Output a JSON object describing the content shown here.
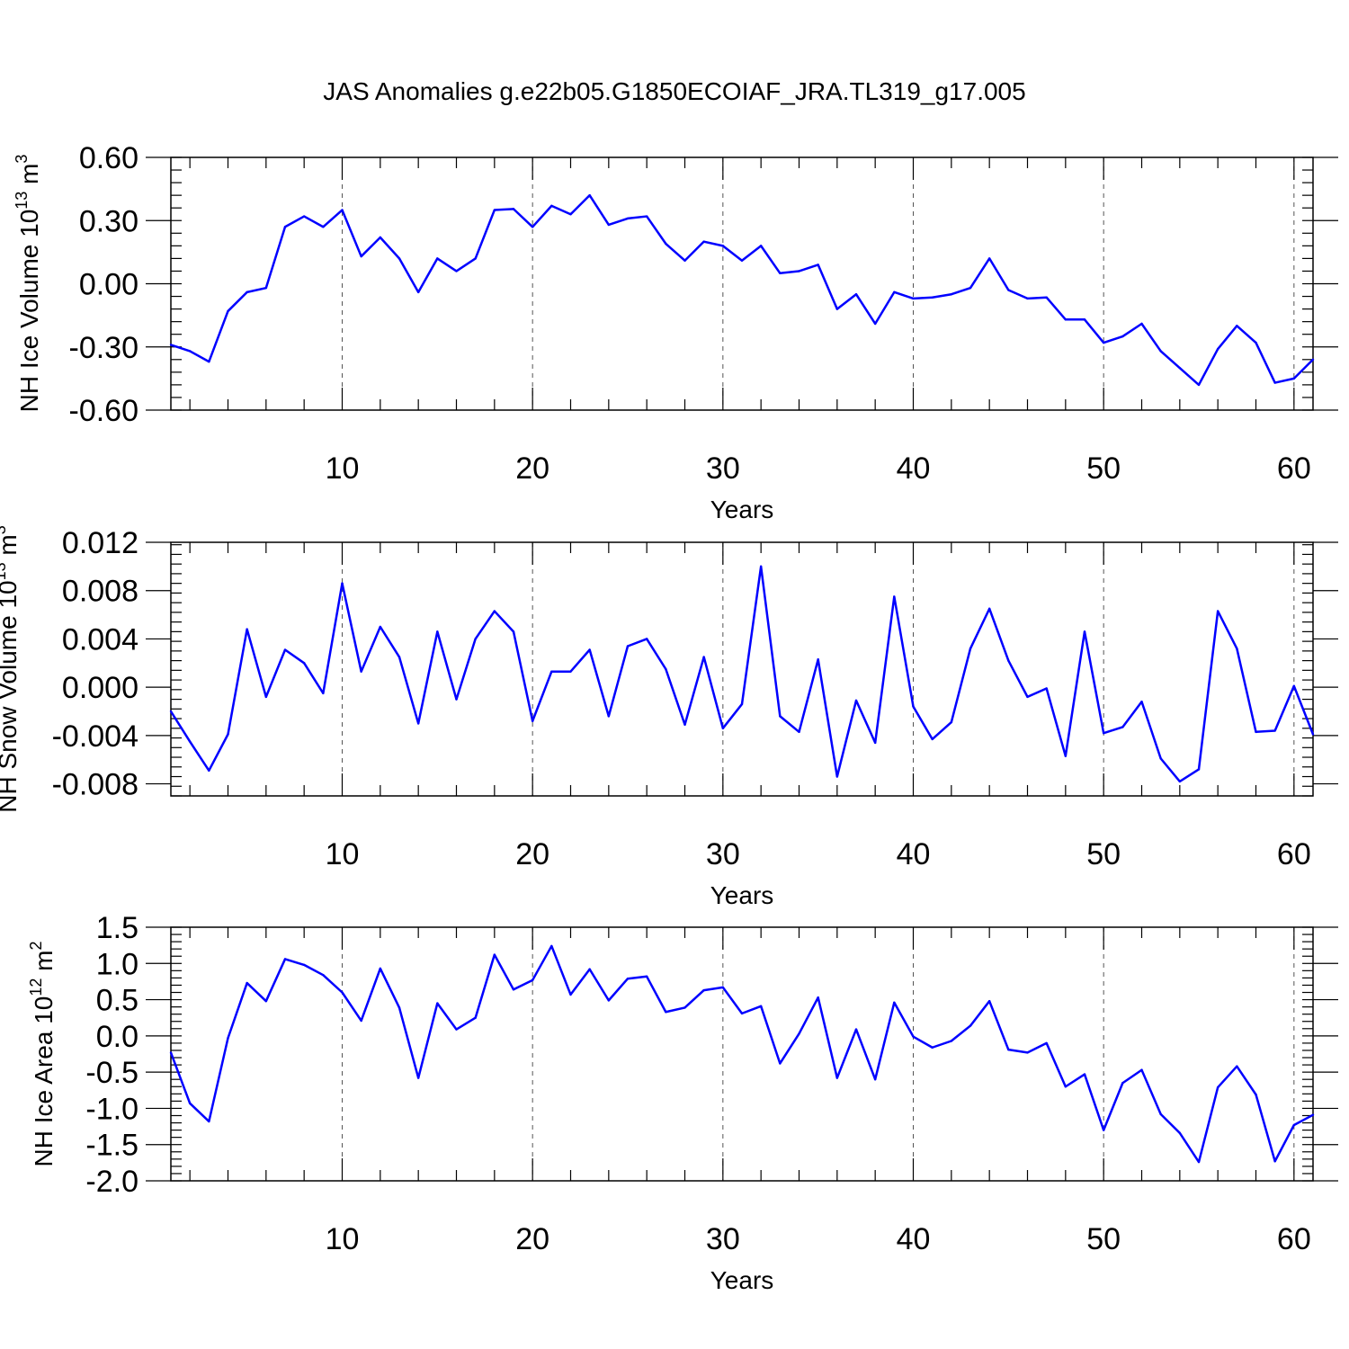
{
  "title": "JAS Anomalies g.e22b05.G1850ECOIAF_JRA.TL319_g17.005",
  "line_color": "#0000ff",
  "chart_data": [
    {
      "type": "line",
      "title": "JAS Anomalies g.e22b05.G1850ECOIAF_JRA.TL319_g17.005",
      "xlabel": "Years",
      "ylabel": "NH Ice Volume 10",
      "ylabel_exp": "13",
      "ylabel_unit": "m",
      "ylabel_unit_exp": "3",
      "xlim": [
        1,
        61
      ],
      "ylim": [
        -0.6,
        0.6
      ],
      "xticks": [
        10,
        20,
        30,
        40,
        50,
        60
      ],
      "xtick_labels": [
        "10",
        "20",
        "30",
        "40",
        "50",
        "60"
      ],
      "yticks": [
        -0.6,
        -0.3,
        0.0,
        0.3,
        0.6
      ],
      "ytick_labels": [
        "-0.60",
        "-0.30",
        "0.00",
        "0.30",
        "0.60"
      ],
      "yminor_step": 0.06,
      "grid": "dashed vertical at x ticks",
      "x": [
        1,
        2,
        3,
        4,
        5,
        6,
        7,
        8,
        9,
        10,
        11,
        12,
        13,
        14,
        15,
        16,
        17,
        18,
        19,
        20,
        21,
        22,
        23,
        24,
        25,
        26,
        27,
        28,
        29,
        30,
        31,
        32,
        33,
        34,
        35,
        36,
        37,
        38,
        39,
        40,
        41,
        42,
        43,
        44,
        45,
        46,
        47,
        48,
        49,
        50,
        51,
        52,
        53,
        54,
        55,
        56,
        57,
        58,
        59,
        60,
        61
      ],
      "values": [
        -0.29,
        -0.32,
        -0.37,
        -0.13,
        -0.04,
        -0.02,
        0.27,
        0.32,
        0.27,
        0.35,
        0.13,
        0.22,
        0.12,
        -0.04,
        0.12,
        0.06,
        0.12,
        0.35,
        0.355,
        0.27,
        0.37,
        0.33,
        0.42,
        0.28,
        0.31,
        0.32,
        0.19,
        0.11,
        0.2,
        0.18,
        0.11,
        0.18,
        0.05,
        0.06,
        0.09,
        -0.12,
        -0.05,
        -0.19,
        -0.04,
        -0.07,
        -0.065,
        -0.05,
        -0.02,
        0.12,
        -0.03,
        -0.07,
        -0.065,
        -0.17,
        -0.17,
        -0.28,
        -0.25,
        -0.19,
        -0.32,
        -0.4,
        -0.48,
        -0.31,
        -0.2,
        -0.28,
        -0.47,
        -0.45,
        -0.36
      ]
    },
    {
      "type": "line",
      "xlabel": "Years",
      "ylabel": "NH Snow Volume 10",
      "ylabel_exp": "13",
      "ylabel_unit": "m",
      "ylabel_unit_exp": "3",
      "xlim": [
        1,
        61
      ],
      "ylim": [
        -0.009,
        0.012
      ],
      "xticks": [
        10,
        20,
        30,
        40,
        50,
        60
      ],
      "xtick_labels": [
        "10",
        "20",
        "30",
        "40",
        "50",
        "60"
      ],
      "yticks": [
        -0.008,
        -0.004,
        0.0,
        0.004,
        0.008,
        0.012
      ],
      "ytick_labels": [
        "-0.008",
        "-0.004",
        "0.000",
        "0.004",
        "0.008",
        "0.012"
      ],
      "yminor_step": 0.0008,
      "grid": "dashed vertical at x ticks",
      "x": [
        1,
        2,
        3,
        4,
        5,
        6,
        7,
        8,
        9,
        10,
        11,
        12,
        13,
        14,
        15,
        16,
        17,
        18,
        19,
        20,
        21,
        22,
        23,
        24,
        25,
        26,
        27,
        28,
        29,
        30,
        31,
        32,
        33,
        34,
        35,
        36,
        37,
        38,
        39,
        40,
        41,
        42,
        43,
        44,
        45,
        46,
        47,
        48,
        49,
        50,
        51,
        52,
        53,
        54,
        55,
        56,
        57,
        58,
        59,
        60,
        61
      ],
      "values": [
        -0.002,
        -0.0045,
        -0.0069,
        -0.0039,
        0.0048,
        -0.0008,
        0.0031,
        0.002,
        -0.0005,
        0.0086,
        0.0013,
        0.005,
        0.0025,
        -0.003,
        0.0046,
        -0.001,
        0.004,
        0.0063,
        0.0046,
        -0.0028,
        0.0013,
        0.0013,
        0.0031,
        -0.0024,
        0.0034,
        0.004,
        0.0015,
        -0.0031,
        0.0025,
        -0.0034,
        -0.0014,
        0.01,
        -0.0024,
        -0.0037,
        0.0023,
        -0.0074,
        -0.0011,
        -0.0046,
        0.0075,
        -0.0016,
        -0.0043,
        -0.0029,
        0.0032,
        0.0065,
        0.0022,
        -0.0008,
        -0.0001,
        -0.0057,
        0.0046,
        -0.0038,
        -0.0033,
        -0.0012,
        -0.0059,
        -0.0078,
        -0.0068,
        0.0063,
        0.0032,
        -0.0037,
        -0.0036,
        0.0001,
        -0.0039
      ]
    },
    {
      "type": "line",
      "xlabel": "Years",
      "ylabel": "NH Ice Area 10",
      "ylabel_exp": "12",
      "ylabel_unit": "m",
      "ylabel_unit_exp": "2",
      "xlim": [
        1,
        61
      ],
      "ylim": [
        -2.0,
        1.5
      ],
      "xticks": [
        10,
        20,
        30,
        40,
        50,
        60
      ],
      "xtick_labels": [
        "10",
        "20",
        "30",
        "40",
        "50",
        "60"
      ],
      "yticks": [
        -2.0,
        -1.5,
        -1.0,
        -0.5,
        0.0,
        0.5,
        1.0,
        1.5
      ],
      "ytick_labels": [
        "-2.0",
        "-1.5",
        "-1.0",
        "-0.5",
        "0.0",
        "0.5",
        "1.0",
        "1.5"
      ],
      "yminor_step": 0.1,
      "grid": "dashed vertical at x ticks",
      "x": [
        1,
        2,
        3,
        4,
        5,
        6,
        7,
        8,
        9,
        10,
        11,
        12,
        13,
        14,
        15,
        16,
        17,
        18,
        19,
        20,
        21,
        22,
        23,
        24,
        25,
        26,
        27,
        28,
        29,
        30,
        31,
        32,
        33,
        34,
        35,
        36,
        37,
        38,
        39,
        40,
        41,
        42,
        43,
        44,
        45,
        46,
        47,
        48,
        49,
        50,
        51,
        52,
        53,
        54,
        55,
        56,
        57,
        58,
        59,
        60,
        61
      ],
      "values": [
        -0.23,
        -0.93,
        -1.18,
        -0.03,
        0.73,
        0.48,
        1.06,
        0.98,
        0.84,
        0.6,
        0.21,
        0.93,
        0.39,
        -0.58,
        0.45,
        0.09,
        0.25,
        1.12,
        0.64,
        0.77,
        1.24,
        0.57,
        0.92,
        0.49,
        0.79,
        0.82,
        0.33,
        0.39,
        0.63,
        0.67,
        0.31,
        0.41,
        -0.38,
        0.03,
        0.53,
        -0.58,
        0.09,
        -0.6,
        0.46,
        -0.01,
        -0.16,
        -0.07,
        0.14,
        0.48,
        -0.19,
        -0.23,
        -0.1,
        -0.7,
        -0.53,
        -1.3,
        -0.65,
        -0.47,
        -1.08,
        -1.34,
        -1.74,
        -0.71,
        -0.42,
        -0.81,
        -1.73,
        -1.23,
        -1.09
      ]
    }
  ]
}
